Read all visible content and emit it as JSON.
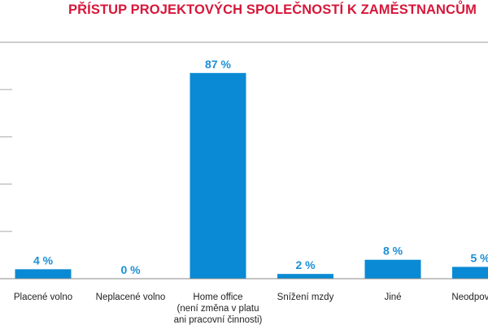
{
  "chart_data": {
    "type": "bar",
    "title": "PŘÍSTUP PROJEKTOVÝCH SPOLEČNOSTÍ K ZAMĚSTNANCŮM",
    "categories": [
      [
        "Placené volno"
      ],
      [
        "Neplacené volno"
      ],
      [
        "Home office",
        "(není změna v platu",
        "ani pracovní činnosti)"
      ],
      [
        "Snížení mzdy"
      ],
      [
        "Jiné"
      ],
      [
        "Neodpověděli"
      ]
    ],
    "values": [
      4,
      0,
      87,
      2,
      8,
      5
    ],
    "data_labels": [
      "4 %",
      "0 %",
      "87 %",
      "2 %",
      "8 %",
      "5 %"
    ],
    "ylim": [
      0,
      100
    ],
    "yticks": [
      0,
      20,
      40,
      60,
      80,
      100
    ],
    "grid": false,
    "colors": {
      "bar": "#0a8ad4",
      "label": "#1a8fd6",
      "title": "#d6173a"
    }
  }
}
